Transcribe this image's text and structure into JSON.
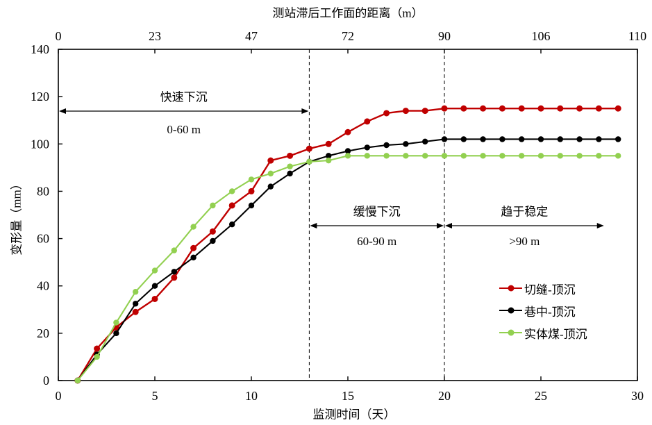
{
  "chart_data": {
    "type": "line",
    "top_x_axis": {
      "label": "测站滞后工作面的距离（m）",
      "tick_labels": [
        "0",
        "23",
        "47",
        "72",
        "90",
        "106",
        "110"
      ]
    },
    "x_axis": {
      "label": "监测时间（天）",
      "ticks": [
        0,
        5,
        10,
        15,
        20,
        25,
        30
      ],
      "range": [
        0,
        30
      ]
    },
    "y_axis": {
      "label": "变形量（mm）",
      "ticks": [
        0,
        20,
        40,
        60,
        80,
        100,
        120,
        140
      ],
      "range": [
        0,
        140
      ]
    },
    "x": [
      1,
      2,
      3,
      4,
      5,
      6,
      7,
      8,
      9,
      10,
      11,
      12,
      13,
      14,
      15,
      16,
      17,
      18,
      19,
      20,
      21,
      22,
      23,
      24,
      25,
      26,
      27,
      28,
      29
    ],
    "series": [
      {
        "name": "切缝-顶沉",
        "color": "#C00000",
        "values": [
          0,
          13.5,
          22.5,
          29,
          34.5,
          43.5,
          56,
          63,
          74,
          80,
          93,
          95,
          98,
          100,
          105,
          109.5,
          113,
          114,
          114,
          115,
          115,
          115,
          115,
          115,
          115,
          115,
          115,
          115,
          115
        ]
      },
      {
        "name": "巷中-顶沉",
        "color": "#000000",
        "values": [
          0,
          11,
          20,
          32.5,
          40,
          46,
          52,
          59,
          66,
          74,
          82,
          87.5,
          92.5,
          95,
          97,
          98.5,
          99.5,
          100,
          101,
          102,
          102,
          102,
          102,
          102,
          102,
          102,
          102,
          102,
          102
        ]
      },
      {
        "name": "实体煤-顶沉",
        "color": "#92D050",
        "values": [
          0,
          10,
          24.5,
          37.5,
          46.5,
          55,
          65,
          74,
          80,
          85,
          87.5,
          90.5,
          92.5,
          93,
          95,
          95,
          95,
          95,
          95,
          95,
          95,
          95,
          95,
          95,
          95,
          95,
          95,
          95,
          95
        ]
      }
    ],
    "reference_lines": {
      "x_days": [
        13,
        20
      ]
    },
    "annotations": [
      {
        "label": "快速下沉",
        "range_label": "0-60 m",
        "x1_day": 0,
        "x2_day": 13
      },
      {
        "label": "缓慢下沉",
        "range_label": "60-90 m",
        "x1_day": 13,
        "x2_day": 20
      },
      {
        "label": "趋于稳定",
        "range_label": ">90 m",
        "x1_day": 20,
        "x2_day": 28.3
      }
    ],
    "legend_position": "right-middle",
    "grid": false
  }
}
